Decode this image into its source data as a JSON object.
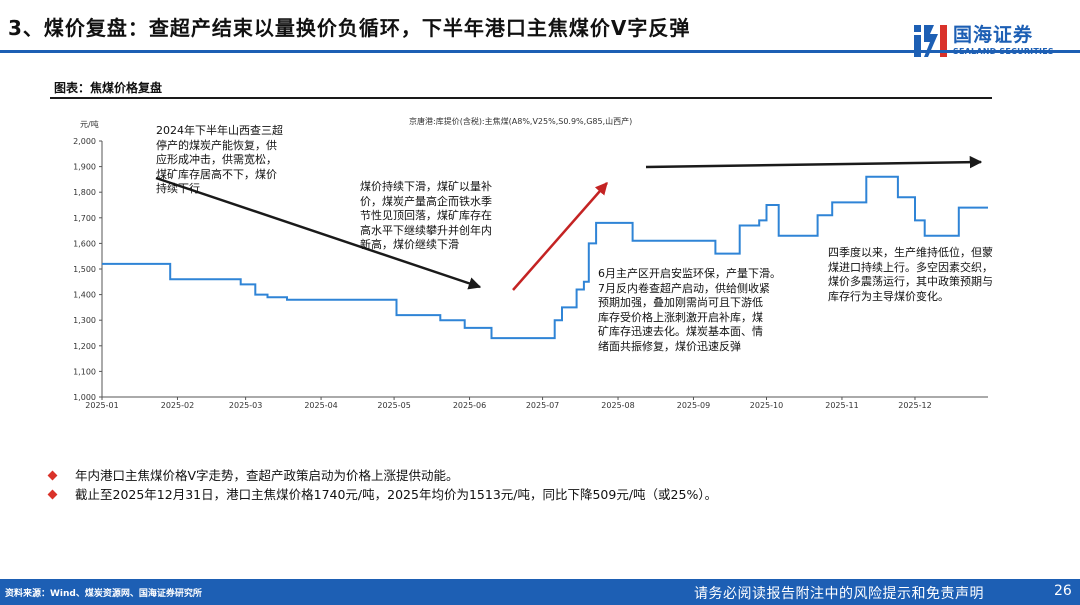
{
  "header": {
    "title": "3、煤价复盘：查超产结束以量换价负循环，下半年港口主焦煤价V字反弹",
    "logo_text": "国海证券",
    "logo_sub": "SEALAND SECURITIES",
    "brand_color": "#1d5fb4"
  },
  "figure": {
    "title": "图表：焦煤价格复盘"
  },
  "chart_data": {
    "type": "line",
    "ylabel": "元/吨",
    "ylim": [
      1000,
      2000
    ],
    "yticks": [
      "2,000",
      "1,900",
      "1,800",
      "1,700",
      "1,600",
      "1,500",
      "1,400",
      "1,300",
      "1,200",
      "1,100",
      "1,000"
    ],
    "xticks": [
      "2025-01",
      "2025-02",
      "2025-03",
      "2025-04",
      "2025-05",
      "2025-06",
      "2025-07",
      "2025-08",
      "2025-09",
      "2025-10",
      "2025-11",
      "2025-12"
    ],
    "x_range": [
      "2025-01-01",
      "2025-12-31"
    ],
    "series": [
      {
        "name": "京唐港:库提价(含税):主焦煤(A8%,V25%,S0.9%,G85,山西产)",
        "color": "#2f84d6",
        "points": [
          [
            "2025-01-01",
            1520
          ],
          [
            "2025-01-20",
            1520
          ],
          [
            "2025-01-20",
            1520
          ],
          [
            "2025-01-29",
            1520
          ],
          [
            "2025-01-29",
            1460
          ],
          [
            "2025-02-15",
            1460
          ],
          [
            "2025-02-15",
            1460
          ],
          [
            "2025-02-27",
            1460
          ],
          [
            "2025-02-27",
            1440
          ],
          [
            "2025-03-05",
            1440
          ],
          [
            "2025-03-05",
            1400
          ],
          [
            "2025-03-10",
            1400
          ],
          [
            "2025-03-10",
            1390
          ],
          [
            "2025-03-18",
            1390
          ],
          [
            "2025-03-18",
            1380
          ],
          [
            "2025-05-02",
            1380
          ],
          [
            "2025-05-02",
            1320
          ],
          [
            "2025-05-20",
            1320
          ],
          [
            "2025-05-20",
            1300
          ],
          [
            "2025-05-30",
            1300
          ],
          [
            "2025-05-30",
            1270
          ],
          [
            "2025-06-10",
            1270
          ],
          [
            "2025-06-10",
            1230
          ],
          [
            "2025-07-06",
            1230
          ],
          [
            "2025-07-06",
            1300
          ],
          [
            "2025-07-09",
            1300
          ],
          [
            "2025-07-09",
            1350
          ],
          [
            "2025-07-15",
            1350
          ],
          [
            "2025-07-15",
            1420
          ],
          [
            "2025-07-18",
            1420
          ],
          [
            "2025-07-18",
            1450
          ],
          [
            "2025-07-20",
            1450
          ],
          [
            "2025-07-20",
            1600
          ],
          [
            "2025-07-23",
            1600
          ],
          [
            "2025-07-23",
            1680
          ],
          [
            "2025-08-07",
            1680
          ],
          [
            "2025-08-07",
            1610
          ],
          [
            "2025-09-10",
            1610
          ],
          [
            "2025-09-10",
            1560
          ],
          [
            "2025-09-20",
            1560
          ],
          [
            "2025-09-20",
            1670
          ],
          [
            "2025-09-28",
            1670
          ],
          [
            "2025-09-28",
            1690
          ],
          [
            "2025-10-01",
            1690
          ],
          [
            "2025-10-01",
            1750
          ],
          [
            "2025-10-06",
            1750
          ],
          [
            "2025-10-06",
            1630
          ],
          [
            "2025-10-22",
            1630
          ],
          [
            "2025-10-22",
            1710
          ],
          [
            "2025-10-28",
            1710
          ],
          [
            "2025-10-28",
            1760
          ],
          [
            "2025-11-11",
            1760
          ],
          [
            "2025-11-11",
            1860
          ],
          [
            "2025-11-24",
            1860
          ],
          [
            "2025-11-24",
            1780
          ],
          [
            "2025-12-01",
            1780
          ],
          [
            "2025-12-01",
            1690
          ],
          [
            "2025-12-05",
            1690
          ],
          [
            "2025-12-05",
            1630
          ],
          [
            "2025-12-19",
            1630
          ],
          [
            "2025-12-19",
            1740
          ],
          [
            "2025-12-31",
            1740
          ]
        ]
      }
    ]
  },
  "annotations": {
    "a1": [
      "2024年下半年山西查三超",
      "停产的煤炭产能恢复，供",
      "应形成冲击，供需宽松，",
      "煤矿库存居高不下，煤价",
      "持续下行"
    ],
    "a2": [
      "煤价持续下滑，煤矿以量补",
      "价，煤炭产量高企而铁水季",
      "节性见顶回落，煤矿库存在",
      "高水平下继续攀升并创年内",
      "新高，煤价继续下滑"
    ],
    "a3": [
      "6月主产区开启安监环保，产量下滑。",
      "7月反内卷查超产启动，供给侧收紧",
      "预期加强，叠加刚需尚可且下游低",
      "库存受价格上涨刺激开启补库，煤",
      "矿库存迅速去化。煤炭基本面、情",
      "绪面共振修复，煤价迅速反弹"
    ],
    "a4": [
      "四季度以来，生产维持低位，但蒙",
      "煤进口持续上行。多空因素交织，",
      "煤价多震荡运行，其中政策预期与",
      "库存行为主导煤价变化。"
    ]
  },
  "arrow_colors": {
    "down": "#1a1a1a",
    "up": "#c42323",
    "flat": "#1a1a1a"
  },
  "bullets": [
    "年内港口主焦煤价格V字走势，查超产政策启动为价格上涨提供动能。",
    "截止至2025年12月31日，港口主焦煤价格1740元/吨，2025年均价为1513元/吨，同比下降509元/吨（或25%）。"
  ],
  "footer": {
    "source": "资料来源：Wind、煤炭资源网、国海证券研究所",
    "disclaimer": "请务必阅读报告附注中的风险提示和免责声明",
    "page": "26"
  }
}
